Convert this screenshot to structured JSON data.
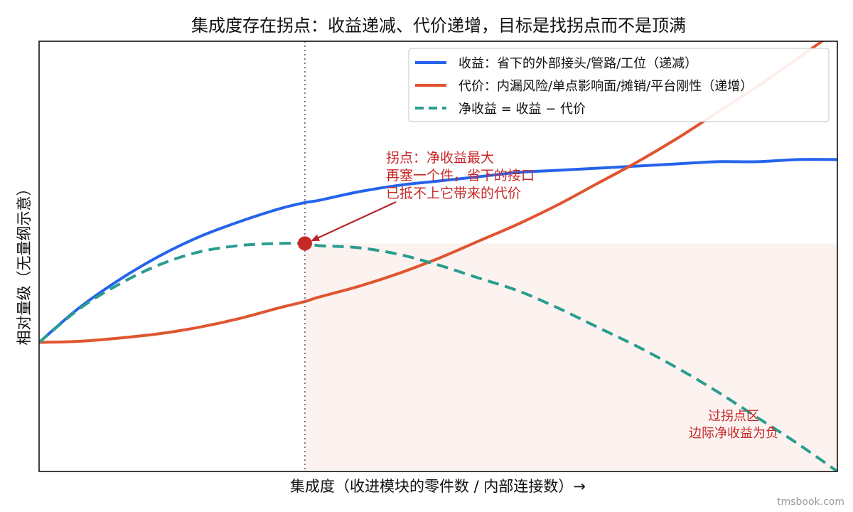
{
  "chart_data": {
    "type": "line",
    "title": "集成度存在拐点：收益递减、代价递增，目标是找拐点而不是顶满",
    "xlabel": "集成度（收进模块的零件数 / 内部连接数）→",
    "ylabel": "相对量级（无量纲示意）",
    "xlim": [
      0,
      10
    ],
    "ylim": [
      -0.6,
      1.4
    ],
    "grid": false,
    "legend_position": "top-right",
    "x": [
      0,
      0.5,
      1,
      1.5,
      2,
      2.5,
      3,
      3.33,
      3.5,
      4,
      4.5,
      5,
      5.5,
      6,
      6.5,
      7,
      7.5,
      8,
      8.5,
      9,
      9.5,
      10
    ],
    "series": [
      {
        "name": "收益：省下的外部接头/管路/工位（递减）",
        "color": "#2563eb",
        "style": "solid",
        "values": [
          0,
          0.16,
          0.29,
          0.4,
          0.49,
          0.56,
          0.62,
          0.65,
          0.66,
          0.7,
          0.73,
          0.75,
          0.77,
          0.79,
          0.8,
          0.81,
          0.82,
          0.83,
          0.84,
          0.84,
          0.85,
          0.85
        ]
      },
      {
        "name": "代价：内漏风险/单点影响面/摊销/平台刚性（递增）",
        "color": "#e0552f",
        "style": "solid",
        "values": [
          0,
          0.005,
          0.02,
          0.04,
          0.07,
          0.11,
          0.16,
          0.19,
          0.21,
          0.26,
          0.32,
          0.39,
          0.47,
          0.55,
          0.64,
          0.74,
          0.84,
          0.95,
          1.07,
          1.19,
          1.32,
          1.45
        ]
      },
      {
        "name": "净收益 = 收益 − 代价",
        "color": "#2a9d8f",
        "style": "dashed",
        "values": [
          0,
          0.155,
          0.27,
          0.36,
          0.42,
          0.45,
          0.46,
          0.46,
          0.45,
          0.44,
          0.41,
          0.36,
          0.3,
          0.24,
          0.16,
          0.07,
          -0.02,
          -0.12,
          -0.23,
          -0.35,
          -0.47,
          -0.6
        ]
      }
    ],
    "peak": {
      "x": 3.33,
      "y": 0.46
    },
    "annotation": {
      "lines": [
        "拐点：净收益最大",
        "再塞一个件，省下的接口",
        "已抵不上它带来的代价"
      ],
      "color": "#c62828"
    },
    "zone_label": {
      "lines": [
        "过拐点区",
        "边际净收益为负"
      ],
      "color": "#c62828"
    }
  },
  "watermark": "tmsbook.com"
}
